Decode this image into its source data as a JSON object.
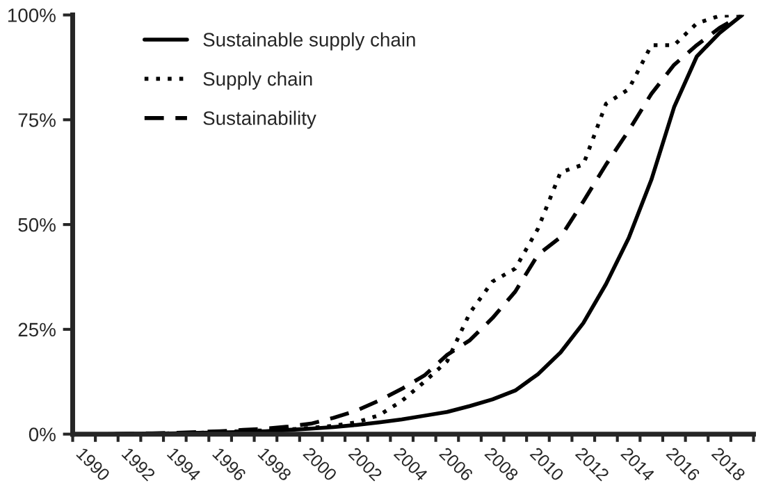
{
  "chart_data": {
    "type": "line",
    "categories": [
      "1990",
      null,
      "1992",
      null,
      "1994",
      null,
      "1996",
      null,
      "1998",
      null,
      "2000",
      null,
      "2002",
      null,
      "2004",
      null,
      "2006",
      null,
      "2008",
      null,
      "2010",
      null,
      "2012",
      null,
      "2014",
      null,
      "2016",
      null,
      "2018",
      null
    ],
    "series": [
      {
        "name": "Sustainable supply chain",
        "color": "#000000",
        "line_style": "solid",
        "values": [
          0,
          0,
          0.1,
          0.1,
          0.2,
          0.3,
          0.4,
          0.5,
          0.7,
          1.0,
          1.3,
          1.7,
          2.2,
          2.8,
          3.5,
          4.4,
          5.3,
          6.7,
          8.3,
          10.4,
          14.3,
          19.5,
          26.5,
          35.8,
          46.8,
          60.7,
          78,
          90.1,
          95.7,
          100
        ]
      },
      {
        "name": "Supply chain",
        "color": "#000000",
        "line_style": "dotted",
        "values": [
          0,
          0,
          0,
          0.1,
          0.2,
          0.3,
          0.5,
          0.7,
          0.9,
          1.1,
          1.5,
          2.0,
          2.8,
          4.5,
          7.9,
          12.5,
          17.4,
          28.9,
          36.4,
          39.5,
          49,
          62.5,
          64.3,
          78.8,
          82.3,
          92.8,
          92.8,
          98,
          99.8,
          100
        ]
      },
      {
        "name": "Sustainability",
        "color": "#000000",
        "line_style": "dashed",
        "values": [
          0,
          0,
          0.1,
          0.2,
          0.3,
          0.5,
          0.7,
          1.0,
          1.3,
          1.8,
          2.5,
          3.9,
          5.6,
          8.0,
          10.8,
          14,
          18.9,
          22.4,
          27.7,
          34,
          42.8,
          47,
          55.5,
          64.3,
          72.4,
          81.2,
          88.1,
          92.8,
          96.9,
          100
        ]
      }
    ],
    "ylim": [
      0,
      100
    ],
    "yticks": [
      {
        "value": 0,
        "label": "0%"
      },
      {
        "value": 25,
        "label": "25%"
      },
      {
        "value": 50,
        "label": "50%"
      },
      {
        "value": 75,
        "label": "75%"
      },
      {
        "value": 100,
        "label": "100%"
      }
    ],
    "legend": "top left",
    "marker": "none"
  }
}
